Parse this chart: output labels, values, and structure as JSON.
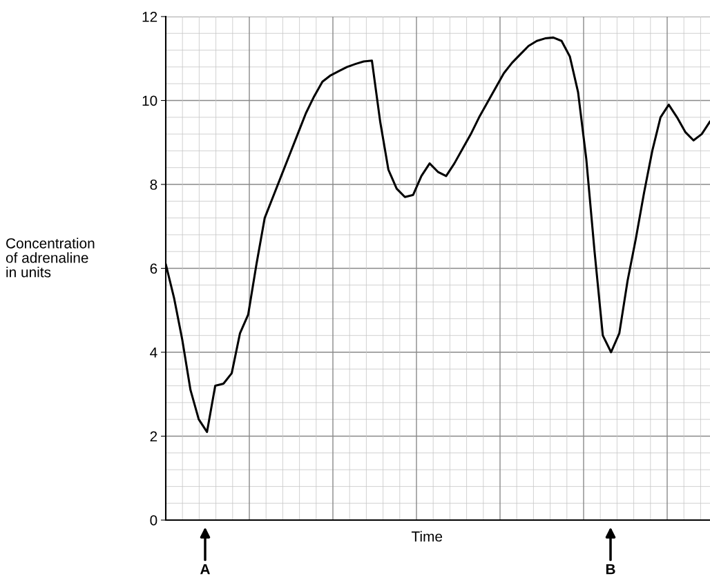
{
  "chart_data": {
    "type": "line",
    "ylabel": "Concentration\nof adrenaline\nin units",
    "xlabel": "Time",
    "categories": [
      null,
      null,
      null,
      null,
      null,
      null,
      null,
      null,
      null,
      null,
      null,
      null,
      null,
      null,
      null,
      null,
      null,
      null,
      null,
      null,
      null,
      null,
      null,
      null,
      null,
      null,
      null,
      null,
      null,
      null,
      null,
      null,
      null,
      null,
      null,
      null,
      null,
      null,
      null,
      null,
      null,
      null,
      null,
      null,
      null,
      null,
      null,
      null,
      null,
      null,
      null,
      null,
      null,
      null,
      null,
      null,
      null,
      null,
      null,
      null,
      null,
      null,
      null,
      null,
      null,
      null,
      null
    ],
    "series": [
      {
        "color": "#000000",
        "values": [
          6.1,
          5.3,
          4.3,
          3.1,
          2.4,
          2.1,
          3.2,
          3.25,
          3.5,
          4.45,
          4.9,
          6.1,
          7.2,
          7.7,
          8.2,
          8.7,
          9.2,
          9.7,
          10.1,
          10.45,
          10.6,
          10.7,
          10.8,
          10.87,
          10.93,
          10.95,
          9.5,
          8.35,
          7.9,
          7.7,
          7.75,
          8.2,
          8.5,
          8.3,
          8.2,
          8.5,
          8.85,
          9.2,
          9.6,
          9.95,
          10.3,
          10.65,
          10.9,
          11.1,
          11.3,
          11.42,
          11.48,
          11.5,
          11.42,
          11.05,
          10.2,
          8.6,
          6.4,
          4.4,
          4.0,
          4.45,
          5.7,
          6.7,
          7.8,
          8.8,
          9.6,
          9.9,
          9.6,
          9.25,
          9.05,
          9.2,
          9.5
        ]
      }
    ],
    "ylim": [
      0,
      12
    ],
    "yticks": [
      0,
      2,
      4,
      6,
      8,
      10,
      12
    ],
    "grid": true,
    "marker": "none",
    "line_style": "solid",
    "annotations": [
      "A",
      "B"
    ]
  }
}
